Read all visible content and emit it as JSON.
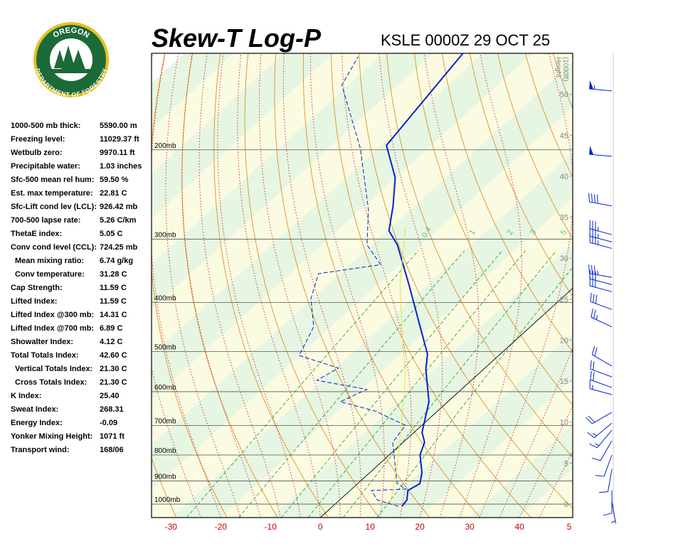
{
  "chart_data": {
    "type": "skewt",
    "title": "Skew-T Log-P",
    "subtitle": "KSLE 0000Z 29 OCT 25",
    "logo": {
      "top": "OREGON",
      "bottom": "DEPARTMENT OF FORESTRY"
    },
    "xlim": [
      -33.9,
      50.7
    ],
    "xticks": [
      -30,
      -20,
      -10,
      0,
      10,
      20,
      30,
      40,
      {
        "value": 50,
        "label": "5"
      }
    ],
    "ylim": [
      1063,
      129
    ],
    "yticks": [
      {
        "value": 200,
        "label": "200mb"
      },
      {
        "value": 300,
        "label": "300mb"
      },
      {
        "value": 400,
        "label": "400mb"
      },
      {
        "value": 500,
        "label": "500mb"
      },
      {
        "value": 600,
        "label": "600mb"
      },
      {
        "value": 700,
        "label": "700mb"
      },
      {
        "value": 800,
        "label": "800mb"
      },
      {
        "value": 900,
        "label": "900mb"
      },
      {
        "value": 1000,
        "label": "1000mb"
      }
    ],
    "y2label": [
      "Height",
      "(1000ft)"
    ],
    "y2lim": [
      -1.65,
      55.0
    ],
    "y2ticks": [
      0,
      5,
      10,
      15,
      20,
      25,
      30,
      35,
      40,
      45,
      50
    ],
    "mixing_ratio_lines": [
      0.4,
      1,
      2,
      3,
      5,
      8
    ],
    "profiles": [
      {
        "color": "#0022cc",
        "dashed": false,
        "width": 2,
        "pressure": [
          1010,
          981,
          940,
          911,
          867,
          800,
          755,
          722,
          628,
          579,
          543,
          506,
          447,
          369,
          308,
          289,
          258,
          227,
          196,
          129
        ],
        "values": [
          13.9,
          13.5,
          11.6,
          12.5,
          10.5,
          6.2,
          4.3,
          1.6,
          -3.8,
          -8.1,
          -11.5,
          -14.6,
          -22.1,
          -33.7,
          -44.8,
          -49.6,
          -54.3,
          -60.1,
          -69.0,
          -74.0
        ]
      },
      {
        "color": "#0022cc",
        "dashed": true,
        "width": 1,
        "pressure": [
          1010,
          981,
          940,
          934,
          911,
          755,
          699,
          655,
          628,
          594,
          570,
          539,
          509,
          447,
          393,
          351,
          337,
          308,
          262,
          199,
          149,
          131
        ],
        "values": [
          13.2,
          7.5,
          4.3,
          10.9,
          7.9,
          -2.1,
          -3.3,
          -12.6,
          -21.6,
          -19.0,
          -31.0,
          -29.4,
          -40.1,
          -43.5,
          -50.3,
          -54.3,
          -43.8,
          -50.9,
          -58.5,
          -73.5,
          -91.3,
          -94.3
        ]
      },
      {
        "color": "#e8e040",
        "dashed": false,
        "width": 1,
        "pressure": [
          997,
          940,
          800,
          659,
          561,
          462,
          369,
          313,
          285
        ],
        "values": [
          10.9,
          8.6,
          1.9,
          -6.8,
          -14.0,
          -24.1,
          -35.5,
          -42.8,
          -47.0
        ]
      }
    ],
    "winds": {
      "pressure": [
        153,
        206,
        258,
        294,
        304,
        313,
        357,
        369,
        381,
        413,
        447,
        534,
        561,
        589,
        608,
        659,
        692,
        715,
        750,
        800,
        854,
        940,
        987
      ],
      "direction": [
        275,
        275,
        280,
        285,
        285,
        285,
        280,
        285,
        285,
        290,
        295,
        300,
        290,
        290,
        285,
        240,
        230,
        220,
        210,
        200,
        190,
        180,
        170
      ],
      "speed": [
        55,
        50,
        40,
        35,
        35,
        35,
        35,
        30,
        30,
        30,
        25,
        20,
        20,
        20,
        15,
        20,
        15,
        15,
        10,
        10,
        10,
        10,
        5
      ]
    }
  },
  "stats": [
    {
      "label": "1000-500 mb thick:",
      "value": "5590.00 m"
    },
    {
      "label": "Freezing level:",
      "value": "11029.37 ft"
    },
    {
      "label": "Wetbulb zero:",
      "value": "9970.11 ft"
    },
    {
      "label": "Precipitable water:",
      "value": "1.03 inches"
    },
    {
      "label": "Sfc-500 mean rel hum:",
      "value": "59.50 %"
    },
    {
      "label": "Est. max temperature:",
      "value": "22.81 C"
    },
    {
      "label": "Sfc-Lift cond lev (LCL):",
      "value": "926.42 mb"
    },
    {
      "label": "700-500 lapse rate:",
      "value": "5.26 C/km"
    },
    {
      "label": "ThetaE index:",
      "value": "5.05 C"
    },
    {
      "label": "Conv cond level (CCL):",
      "value": "724.25 mb"
    },
    {
      "label": "Mean mixing ratio:",
      "value": "6.74 g/kg",
      "indent": true
    },
    {
      "label": "Conv temperature:",
      "value": "31.28 C",
      "indent": true
    },
    {
      "label": "Cap Strength:",
      "value": "11.59 C"
    },
    {
      "label": "Lifted Index:",
      "value": "11.59 C"
    },
    {
      "label": "Lifted Index @300 mb:",
      "value": "14.31 C"
    },
    {
      "label": "Lifted Index @700 mb:",
      "value": "6.89 C"
    },
    {
      "label": "Showalter Index:",
      "value": "4.12 C"
    },
    {
      "label": "Total Totals Index:",
      "value": "42.60 C"
    },
    {
      "label": "Vertical Totals Index:",
      "value": "21.30 C",
      "indent": true
    },
    {
      "label": "Cross Totals Index:",
      "value": "21.30 C",
      "indent": true
    },
    {
      "label": "K Index:",
      "value": "25.40"
    },
    {
      "label": "Sweat Index:",
      "value": "268.31"
    },
    {
      "label": "Energy Index:",
      "value": "-0.09"
    },
    {
      "label": "Yonker Mixing Height:",
      "value": "1071 ft"
    },
    {
      "label": "Transport wind:",
      "value": "168/06"
    }
  ]
}
